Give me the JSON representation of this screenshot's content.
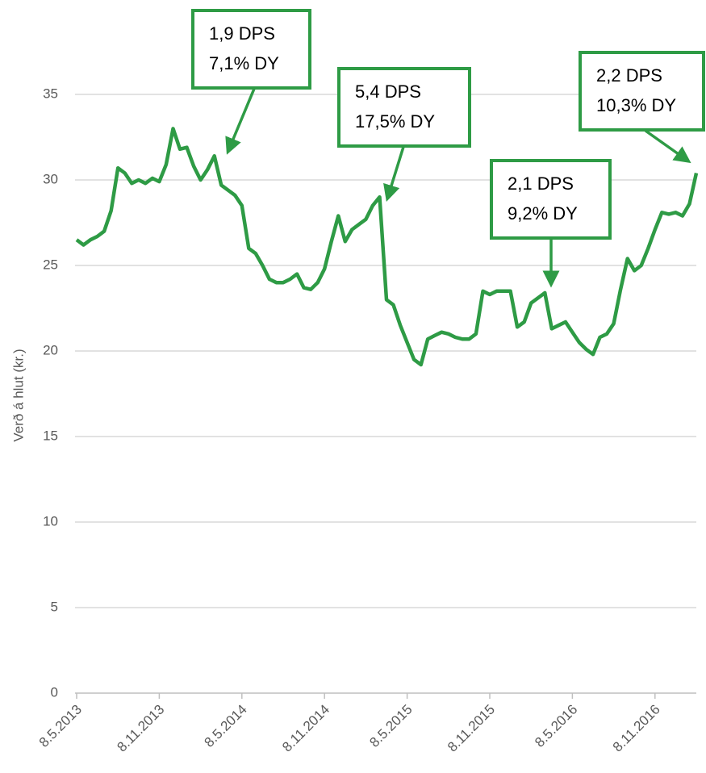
{
  "chart_data": {
    "type": "line",
    "y_axis_label": "Verð á hlut (kr.)",
    "categories": [
      "8.5.2013",
      null,
      null,
      null,
      null,
      null,
      null,
      null,
      null,
      null,
      null,
      null,
      "8.11.2013",
      null,
      null,
      null,
      null,
      null,
      null,
      null,
      null,
      null,
      null,
      null,
      "8.5.2014",
      null,
      null,
      null,
      null,
      null,
      null,
      null,
      null,
      null,
      null,
      null,
      "8.11.2014",
      null,
      null,
      null,
      null,
      null,
      null,
      null,
      null,
      null,
      null,
      null,
      "8.5.2015",
      null,
      null,
      null,
      null,
      null,
      null,
      null,
      null,
      null,
      null,
      null,
      "8.11.2015",
      null,
      null,
      null,
      null,
      null,
      null,
      null,
      null,
      null,
      null,
      null,
      "8.5.2016",
      null,
      null,
      null,
      null,
      null,
      null,
      null,
      null,
      null,
      null,
      null,
      "8.11.2016",
      null,
      null,
      null,
      null,
      null,
      null
    ],
    "values": [
      26.5,
      26.2,
      26.5,
      26.7,
      27.0,
      28.2,
      30.7,
      30.4,
      29.8,
      30.0,
      29.8,
      30.1,
      29.9,
      30.9,
      33.0,
      31.8,
      31.9,
      30.8,
      30.0,
      30.6,
      31.4,
      29.7,
      29.4,
      29.1,
      28.5,
      26.0,
      25.7,
      25.0,
      24.2,
      24.0,
      24.0,
      24.2,
      24.5,
      23.7,
      23.6,
      24.0,
      24.8,
      26.4,
      27.9,
      26.4,
      27.1,
      27.4,
      27.7,
      28.5,
      29.0,
      23.0,
      22.7,
      21.5,
      20.5,
      19.5,
      19.2,
      20.7,
      20.9,
      21.1,
      21.0,
      20.8,
      20.7,
      20.7,
      21.0,
      23.5,
      23.3,
      23.5,
      23.5,
      23.5,
      21.4,
      21.7,
      22.8,
      23.1,
      23.4,
      21.3,
      21.5,
      21.7,
      21.1,
      20.5,
      20.1,
      19.8,
      20.8,
      21.0,
      21.6,
      23.6,
      25.4,
      24.7,
      25.0,
      26.0,
      27.1,
      28.1,
      28.0,
      28.1,
      27.9,
      28.6,
      30.4
    ],
    "color": "#2e9b45",
    "ylim": [
      0,
      35
    ],
    "yticks": [
      0,
      5,
      10,
      15,
      20,
      25,
      30,
      35
    ],
    "grid": true,
    "annotations": [
      {
        "lines": [
          "1,9 DPS",
          "7,1% DY"
        ]
      },
      {
        "lines": [
          "5,4 DPS",
          "17,5% DY"
        ]
      },
      {
        "lines": [
          "2,1 DPS",
          "9,2% DY"
        ]
      },
      {
        "lines": [
          "2,2 DPS",
          "10,3% DY"
        ]
      }
    ]
  }
}
